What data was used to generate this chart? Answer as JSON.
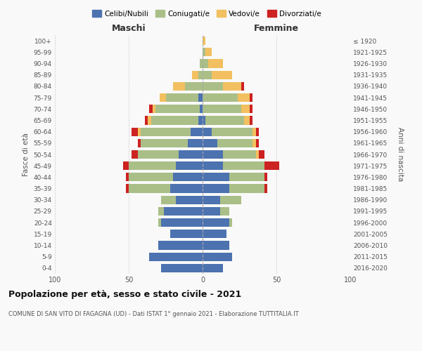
{
  "age_groups": [
    "0-4",
    "5-9",
    "10-14",
    "15-19",
    "20-24",
    "25-29",
    "30-34",
    "35-39",
    "40-44",
    "45-49",
    "50-54",
    "55-59",
    "60-64",
    "65-69",
    "70-74",
    "75-79",
    "80-84",
    "85-89",
    "90-94",
    "95-99",
    "100+"
  ],
  "birth_years": [
    "2016-2020",
    "2011-2015",
    "2006-2010",
    "2001-2005",
    "1996-2000",
    "1991-1995",
    "1986-1990",
    "1981-1985",
    "1976-1980",
    "1971-1975",
    "1966-1970",
    "1961-1965",
    "1956-1960",
    "1951-1955",
    "1946-1950",
    "1941-1945",
    "1936-1940",
    "1931-1935",
    "1926-1930",
    "1921-1925",
    "≤ 1920"
  ],
  "colors": {
    "celibi": "#4C72B0",
    "coniugati": "#AABF88",
    "vedovi": "#F2C060",
    "divorziati": "#CC2222"
  },
  "maschi": {
    "celibi": [
      28,
      36,
      30,
      22,
      28,
      26,
      18,
      22,
      20,
      18,
      16,
      10,
      8,
      3,
      2,
      3,
      0,
      0,
      0,
      0,
      0
    ],
    "coniugati": [
      0,
      0,
      0,
      0,
      2,
      4,
      10,
      28,
      30,
      32,
      28,
      32,
      34,
      32,
      30,
      22,
      12,
      3,
      2,
      0,
      0
    ],
    "vedovi": [
      0,
      0,
      0,
      0,
      0,
      0,
      0,
      0,
      0,
      0,
      0,
      0,
      2,
      2,
      2,
      4,
      8,
      4,
      0,
      0,
      0
    ],
    "divorziati": [
      0,
      0,
      0,
      0,
      0,
      0,
      0,
      2,
      2,
      4,
      4,
      2,
      4,
      2,
      2,
      0,
      0,
      0,
      0,
      0,
      0
    ]
  },
  "femmine": {
    "celibi": [
      14,
      20,
      18,
      16,
      18,
      12,
      12,
      18,
      18,
      14,
      14,
      10,
      6,
      2,
      0,
      0,
      0,
      0,
      0,
      0,
      0
    ],
    "coniugati": [
      0,
      0,
      0,
      0,
      2,
      6,
      14,
      24,
      24,
      28,
      22,
      24,
      28,
      26,
      26,
      24,
      14,
      6,
      4,
      2,
      0
    ],
    "vedovi": [
      0,
      0,
      0,
      0,
      0,
      0,
      0,
      0,
      0,
      0,
      2,
      2,
      2,
      4,
      6,
      8,
      12,
      14,
      10,
      4,
      2
    ],
    "divorziati": [
      0,
      0,
      0,
      0,
      0,
      0,
      0,
      2,
      2,
      10,
      4,
      2,
      2,
      2,
      2,
      2,
      2,
      0,
      0,
      0,
      0
    ]
  },
  "xlim": 100,
  "title": "Popolazione per età, sesso e stato civile - 2021",
  "subtitle": "COMUNE DI SAN VITO DI FAGAGNA (UD) - Dati ISTAT 1° gennaio 2021 - Elaborazione TUTTITALIA.IT",
  "xlabel_left": "Maschi",
  "xlabel_right": "Femmine",
  "ylabel_left": "Fasce di età",
  "ylabel_right": "Anni di nascita",
  "legend_labels": [
    "Celibi/Nubili",
    "Coniugati/e",
    "Vedovi/e",
    "Divorziati/e"
  ],
  "bg_color": "#f9f9f9",
  "grid_color": "#cccccc"
}
